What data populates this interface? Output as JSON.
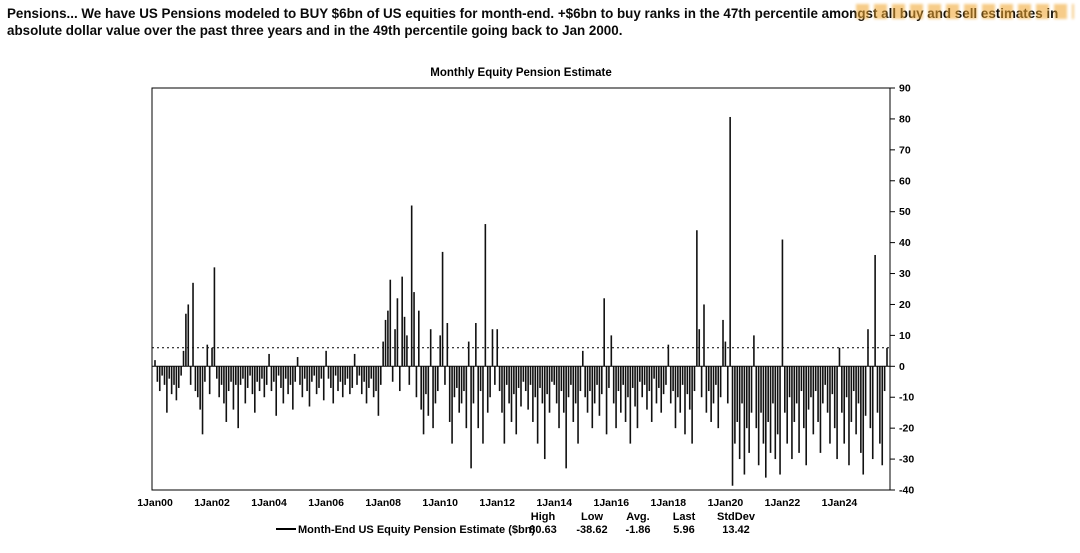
{
  "header": {
    "text": "Pensions... We have US Pensions modeled to BUY $6bn of US equities for month-end. +$6bn to buy ranks in the 47th percentile amongst all buy and sell estimates in absolute dollar value over the past three years and in the 49th percentile going back to Jan 2000."
  },
  "watermark": {
    "color": "#f0a732"
  },
  "legend": {
    "series_label": "Month-End US Equity Pension Estimate ($bn)",
    "stats_headers": [
      "High",
      "Low",
      "Avg.",
      "Last",
      "StdDev"
    ],
    "stats_values": [
      "80.63",
      "-38.62",
      "-1.86",
      "5.96",
      "13.42"
    ]
  },
  "chart_data": {
    "type": "bar",
    "title": "Monthly Equity Pension Estimate",
    "series_name": "Month-End US Equity Pension Estimate ($bn)",
    "frequency": "monthly",
    "start": "Jan 2000",
    "end": "Sep 2025",
    "ylim": [
      -40,
      90
    ],
    "y_ticks": [
      90,
      80,
      70,
      60,
      50,
      40,
      30,
      20,
      10,
      0,
      -10,
      -20,
      -30,
      -40
    ],
    "threshold_line": 6,
    "zero_line": 0,
    "grid": false,
    "legend_position": "bottom",
    "bar_color": "#111111",
    "x_tick_labels": [
      "1Jan00",
      "1Jan02",
      "1Jan04",
      "1Jan06",
      "1Jan08",
      "1Jan10",
      "1Jan12",
      "1Jan14",
      "1Jan16",
      "1Jan18",
      "1Jan20",
      "1Jan22",
      "1Jan24"
    ],
    "x_tick_indices": [
      0,
      24,
      48,
      72,
      96,
      120,
      144,
      168,
      192,
      216,
      240,
      264,
      288
    ],
    "stats": {
      "high": 80.63,
      "low": -38.62,
      "avg": -1.86,
      "last": 5.96,
      "stddev": 13.42
    },
    "values": [
      2,
      -5,
      -8,
      -3,
      -6,
      -15,
      -4,
      -9,
      -6,
      -11,
      -7,
      -3,
      5,
      17,
      20,
      -6,
      27,
      -8,
      -10,
      -14,
      -22,
      -5,
      7,
      -9,
      6,
      32,
      -4,
      -10,
      -6,
      -12,
      -18,
      -8,
      -5,
      -14,
      -6,
      -20,
      -6,
      -4,
      -12,
      -7,
      -3,
      -9,
      -15,
      -5,
      -8,
      -4,
      -10,
      -6,
      4,
      -8,
      -5,
      -16,
      -3,
      -7,
      -12,
      -4,
      -9,
      -6,
      -14,
      -5,
      3,
      -6,
      -10,
      -4,
      -8,
      -13,
      -5,
      -3,
      -9,
      -7,
      -4,
      -11,
      5,
      -4,
      -7,
      -12,
      -3,
      -8,
      -5,
      -10,
      -6,
      -4,
      -9,
      -7,
      4,
      -6,
      -3,
      -9,
      -5,
      -12,
      -7,
      -4,
      -10,
      -8,
      -16,
      -6,
      8,
      15,
      18,
      28,
      -5,
      12,
      22,
      -8,
      29,
      16,
      10,
      -6,
      52,
      24,
      -10,
      18,
      -14,
      -22,
      -9,
      -16,
      12,
      -20,
      -12,
      -8,
      10,
      37,
      -6,
      14,
      -18,
      -25,
      -10,
      -7,
      -15,
      -12,
      -8,
      -20,
      8,
      -33,
      -12,
      14,
      -20,
      -8,
      -25,
      46,
      -15,
      -10,
      12,
      -6,
      12,
      -8,
      -15,
      -25,
      -6,
      -12,
      -18,
      -9,
      -22,
      -7,
      -13,
      -5,
      -8,
      -14,
      -6,
      -18,
      -10,
      -25,
      -7,
      -12,
      -30,
      -9,
      -15,
      -5,
      -6,
      -12,
      -20,
      -8,
      -15,
      -33,
      -10,
      -6,
      -18,
      -12,
      -25,
      -8,
      5,
      -10,
      -15,
      -8,
      -20,
      -12,
      -6,
      -16,
      -9,
      22,
      -22,
      -7,
      10,
      -12,
      -20,
      -8,
      -15,
      -6,
      -18,
      -10,
      -25,
      -7,
      -13,
      -20,
      -5,
      -10,
      -6,
      -14,
      -8,
      -18,
      -4,
      -12,
      -7,
      -15,
      -9,
      -6,
      7,
      -12,
      -8,
      -20,
      -10,
      -15,
      -6,
      -22,
      -9,
      -14,
      -25,
      -8,
      44,
      12,
      -10,
      20,
      -15,
      -8,
      -18,
      -12,
      -6,
      -20,
      -10,
      15,
      8,
      -12,
      80.63,
      -38.62,
      -25,
      -18,
      -30,
      -12,
      -35,
      -20,
      -28,
      -15,
      10,
      -20,
      -32,
      -15,
      -25,
      -36,
      -18,
      -28,
      -12,
      -30,
      -22,
      -35,
      41,
      -15,
      -25,
      -10,
      -30,
      -18,
      -12,
      -28,
      -8,
      -20,
      -32,
      -14,
      -10,
      -22,
      -8,
      -18,
      -28,
      -12,
      -6,
      -15,
      -25,
      -9,
      -20,
      -30,
      6,
      -15,
      -25,
      -10,
      -32,
      -18,
      -8,
      -22,
      -12,
      -28,
      -35,
      -16,
      12,
      -20,
      -30,
      36,
      -15,
      -25,
      -32,
      -8,
      5.96
    ]
  }
}
